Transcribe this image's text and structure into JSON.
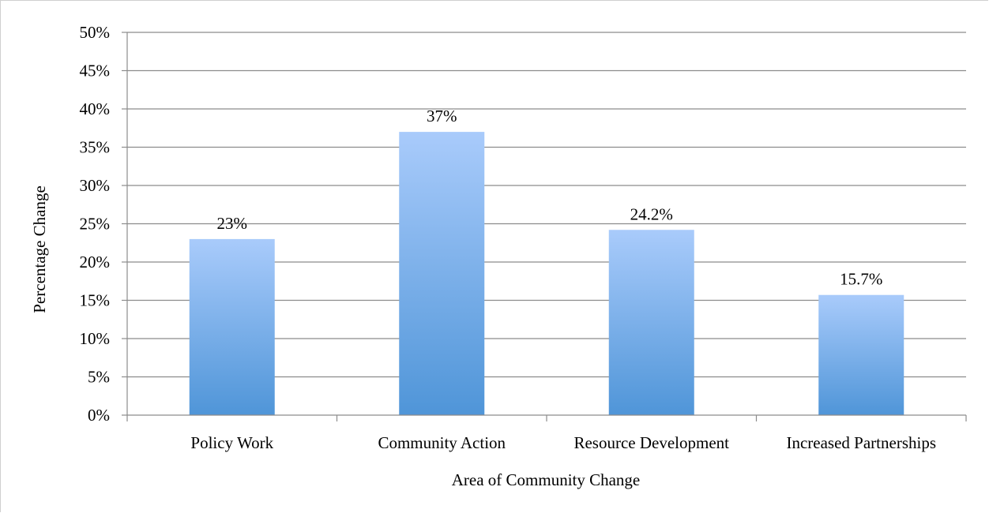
{
  "chart_data": {
    "type": "bar",
    "categories": [
      "Policy Work",
      "Community Action",
      "Resource Development",
      "Increased Partnerships"
    ],
    "values": [
      23,
      37,
      24.2,
      15.7
    ],
    "data_labels": [
      "23%",
      "37%",
      "24.2%",
      "15.7%"
    ],
    "title": "",
    "xlabel": "Area of Community Change",
    "ylabel": "Percentage Change",
    "ylim": [
      0,
      50
    ],
    "yticks": [
      0,
      5,
      10,
      15,
      20,
      25,
      30,
      35,
      40,
      45,
      50
    ],
    "ytick_labels": [
      "0%",
      "5%",
      "10%",
      "15%",
      "20%",
      "25%",
      "30%",
      "35%",
      "40%",
      "45%",
      "50%"
    ],
    "grid": true,
    "legend": "none",
    "colors": {
      "bar_top": "#a9cbfb",
      "bar_bottom": "#4f95d8",
      "grid": "#8c8c8c",
      "axis": "#8c8c8c"
    }
  }
}
